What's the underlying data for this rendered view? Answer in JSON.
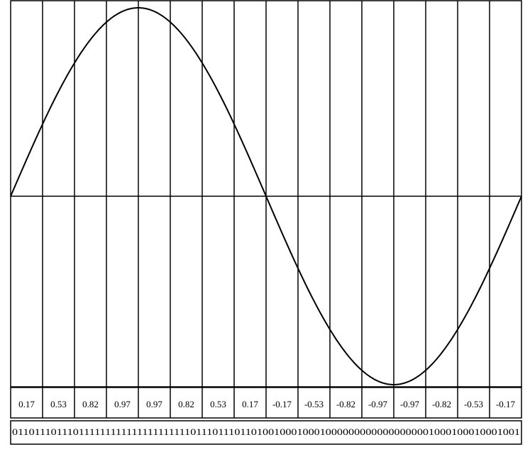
{
  "samples": [
    0.17,
    0.53,
    0.82,
    0.97,
    0.97,
    0.82,
    0.53,
    0.17,
    -0.17,
    -0.53,
    -0.82,
    -0.97,
    -0.97,
    -0.82,
    -0.53,
    -0.17
  ],
  "bits": "0110111011101111111111111111111110111011101101001000100010000000000000000001000100010001001"
}
